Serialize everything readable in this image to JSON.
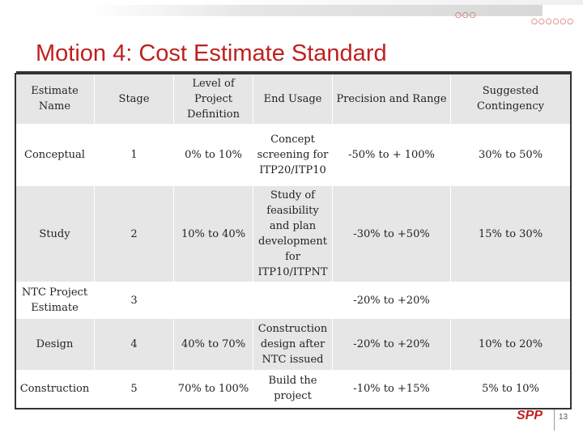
{
  "slide": {
    "title": "Motion 4: Cost Estimate Standard",
    "page_number": "13",
    "logo_text": "SPP",
    "accent_color": "#c01f1f"
  },
  "table": {
    "headers": [
      "Estimate Name",
      "Stage",
      "Level of Project Definition",
      "End Usage",
      "Precision and Range",
      "Suggested Contingency"
    ],
    "rows": [
      [
        "Conceptual",
        "1",
        "0% to 10%",
        "Concept screening for ITP20/ITP10",
        "-50% to + 100%",
        "30% to 50%"
      ],
      [
        "Study",
        "2",
        "10% to 40%",
        "Study of feasibility and plan development for ITP10/ITPNT",
        "-30% to +50%",
        "15% to 30%"
      ],
      [
        "NTC Project Estimate",
        "3",
        "",
        "",
        "-20% to +20%",
        ""
      ],
      [
        "Design",
        "4",
        "40% to 70%",
        "Construction design after NTC issued",
        "-20% to +20%",
        "10% to 20%"
      ],
      [
        "Construction",
        "5",
        "70% to 100%",
        "Build the project",
        "-10% to +15%",
        "5% to 10%"
      ]
    ]
  }
}
